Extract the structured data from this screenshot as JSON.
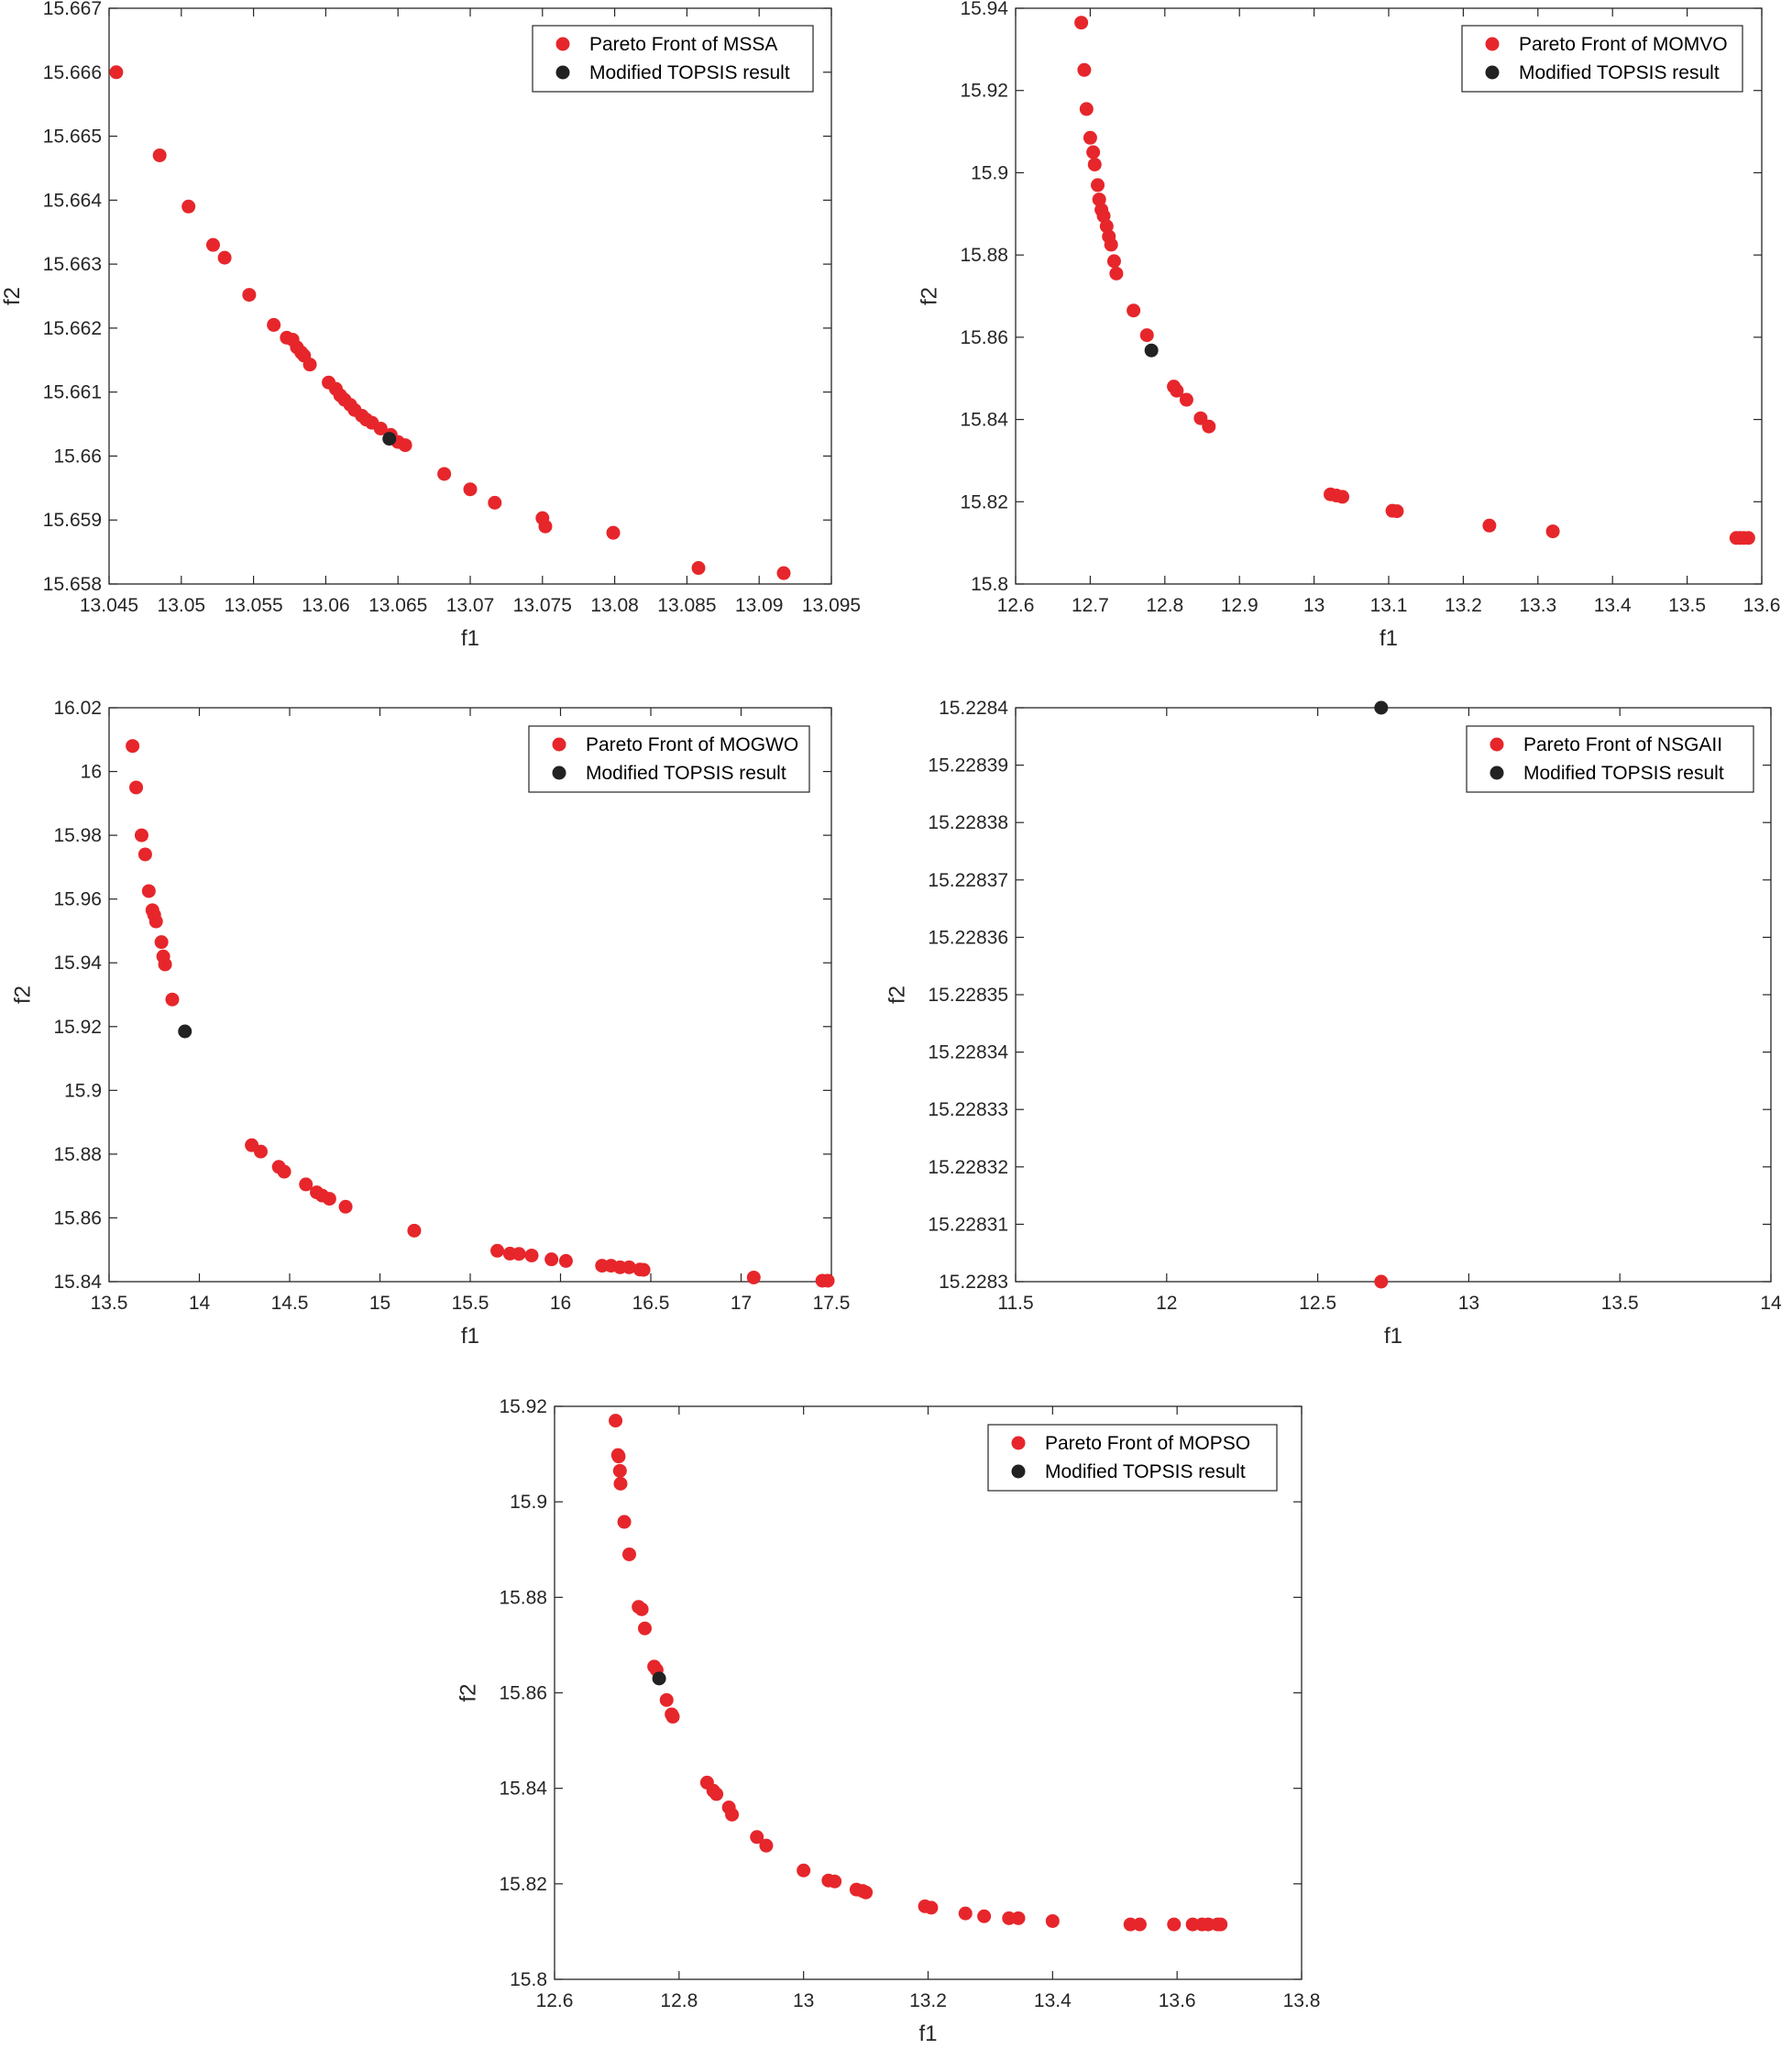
{
  "colors": {
    "pareto": "#e6262b",
    "topsis": "#222222",
    "axis": "#262626"
  },
  "chart_data": [
    {
      "type": "scatter",
      "xlabel": "f1",
      "ylabel": "f2",
      "xlim": [
        13.045,
        13.095
      ],
      "ylim": [
        15.658,
        15.667
      ],
      "xticks": [
        "13.045",
        "13.05",
        "13.055",
        "13.06",
        "13.065",
        "13.07",
        "13.075",
        "13.08",
        "13.085",
        "13.09",
        "13.095"
      ],
      "yticks": [
        "15.658",
        "15.659",
        "15.66",
        "15.661",
        "15.662",
        "15.663",
        "15.664",
        "15.665",
        "15.666",
        "15.667"
      ],
      "legend": "top-right",
      "series": [
        {
          "name": "Pareto Front of MSSA",
          "color": "pareto",
          "x": [
            13.0455,
            13.0485,
            13.0505,
            13.0522,
            13.053,
            13.0547,
            13.0564,
            13.0573,
            13.0577,
            13.058,
            13.0583,
            13.0585,
            13.0589,
            13.0602,
            13.0607,
            13.061,
            13.0613,
            13.0617,
            13.062,
            13.0625,
            13.0628,
            13.0632,
            13.0638,
            13.0645,
            13.065,
            13.0655,
            13.0682,
            13.07,
            13.0717,
            13.075,
            13.0752,
            13.0799,
            13.0858,
            13.0917
          ],
          "y": [
            15.666,
            15.6647,
            15.6639,
            15.6633,
            15.6631,
            15.66252,
            15.66205,
            15.66185,
            15.66182,
            15.6617,
            15.66162,
            15.66157,
            15.66143,
            15.66115,
            15.66105,
            15.66095,
            15.66088,
            15.6608,
            15.66072,
            15.66063,
            15.66057,
            15.66052,
            15.66043,
            15.66033,
            15.66022,
            15.66017,
            15.65972,
            15.65948,
            15.65927,
            15.65903,
            15.6589,
            15.6588,
            15.65825,
            15.65817
          ]
        },
        {
          "name": "Modified TOPSIS result",
          "color": "topsis",
          "x": [
            13.0644
          ],
          "y": [
            15.66027
          ]
        }
      ]
    },
    {
      "type": "scatter",
      "xlabel": "f1",
      "ylabel": "f2",
      "xlim": [
        12.6,
        13.6
      ],
      "ylim": [
        15.8,
        15.94
      ],
      "xticks": [
        "12.6",
        "12.7",
        "12.8",
        "12.9",
        "13",
        "13.1",
        "13.2",
        "13.3",
        "13.4",
        "13.5",
        "13.6"
      ],
      "yticks": [
        "15.8",
        "15.82",
        "15.84",
        "15.86",
        "15.88",
        "15.9",
        "15.92",
        "15.94"
      ],
      "legend": "top-right",
      "series": [
        {
          "name": "Pareto Front of MOMVO",
          "color": "pareto",
          "x": [
            12.688,
            12.692,
            12.695,
            12.7,
            12.704,
            12.706,
            12.71,
            12.712,
            12.715,
            12.718,
            12.722,
            12.725,
            12.728,
            12.732,
            12.735,
            12.758,
            12.776,
            12.812,
            12.816,
            12.829,
            12.848,
            12.859,
            13.022,
            13.03,
            13.038,
            13.105,
            13.111,
            13.235,
            13.32,
            13.566,
            13.571,
            13.576,
            13.582
          ],
          "y": [
            15.9365,
            15.925,
            15.9155,
            15.9085,
            15.905,
            15.902,
            15.897,
            15.8935,
            15.891,
            15.8895,
            15.887,
            15.8845,
            15.8825,
            15.8785,
            15.8755,
            15.8665,
            15.8605,
            15.848,
            15.847,
            15.8448,
            15.8403,
            15.8383,
            15.8218,
            15.8215,
            15.8212,
            15.8178,
            15.8177,
            15.8142,
            15.8128,
            15.8112,
            15.8112,
            15.8112,
            15.8112
          ]
        },
        {
          "name": "Modified TOPSIS result",
          "color": "topsis",
          "x": [
            12.782
          ],
          "y": [
            15.8568
          ]
        }
      ]
    },
    {
      "type": "scatter",
      "xlabel": "f1",
      "ylabel": "f2",
      "xlim": [
        13.5,
        17.5
      ],
      "ylim": [
        15.84,
        16.02
      ],
      "xticks": [
        "13.5",
        "14",
        "14.5",
        "15",
        "15.5",
        "16",
        "16.5",
        "17",
        "17.5"
      ],
      "yticks": [
        "15.84",
        "15.86",
        "15.88",
        "15.9",
        "15.92",
        "15.94",
        "15.96",
        "15.98",
        "16",
        "16.02"
      ],
      "legend": "top-right",
      "series": [
        {
          "name": "Pareto Front of MOGWO",
          "color": "pareto",
          "x": [
            13.63,
            13.65,
            13.68,
            13.7,
            13.72,
            13.74,
            13.75,
            13.76,
            13.79,
            13.8,
            13.81,
            13.85,
            14.29,
            14.34,
            14.44,
            14.47,
            14.59,
            14.65,
            14.68,
            14.72,
            14.81,
            15.19,
            15.65,
            15.72,
            15.77,
            15.84,
            15.95,
            16.03,
            16.23,
            16.28,
            16.33,
            16.38,
            16.44,
            16.46,
            17.07,
            17.45,
            17.48
          ],
          "y": [
            16.008,
            15.995,
            15.98,
            15.974,
            15.9625,
            15.9565,
            15.955,
            15.953,
            15.9465,
            15.942,
            15.9395,
            15.9285,
            15.8828,
            15.8808,
            15.876,
            15.8745,
            15.8705,
            15.868,
            15.867,
            15.866,
            15.8635,
            15.856,
            15.8497,
            15.8488,
            15.8487,
            15.8482,
            15.847,
            15.8465,
            15.845,
            15.845,
            15.8445,
            15.8445,
            15.8438,
            15.8437,
            15.8413,
            15.8403,
            15.8403
          ]
        },
        {
          "name": "Modified TOPSIS result",
          "color": "topsis",
          "x": [
            13.92
          ],
          "y": [
            15.9185
          ]
        }
      ]
    },
    {
      "type": "scatter",
      "xlabel": "f1",
      "ylabel": "f2",
      "xlim": [
        11.5,
        14
      ],
      "ylim": [
        15.2283,
        15.2284
      ],
      "xticks": [
        "11.5",
        "12",
        "12.5",
        "13",
        "13.5",
        "14"
      ],
      "yticks": [
        "15.2283",
        "15.22831",
        "15.22832",
        "15.22833",
        "15.22834",
        "15.22835",
        "15.22836",
        "15.22837",
        "15.22838",
        "15.22839",
        "15.2284"
      ],
      "legend": "top-right",
      "series": [
        {
          "name": "Pareto Front of NSGAII",
          "color": "pareto",
          "x": [
            12.71
          ],
          "y": [
            15.2283
          ]
        },
        {
          "name": "Modified TOPSIS result",
          "color": "topsis",
          "x": [
            12.71
          ],
          "y": [
            15.2284
          ]
        }
      ]
    },
    {
      "type": "scatter",
      "xlabel": "f1",
      "ylabel": "f2",
      "xlim": [
        12.6,
        13.8
      ],
      "ylim": [
        15.8,
        15.92
      ],
      "xticks": [
        "12.6",
        "12.8",
        "13",
        "13.2",
        "13.4",
        "13.6",
        "13.8"
      ],
      "yticks": [
        "15.8",
        "15.82",
        "15.84",
        "15.86",
        "15.88",
        "15.9",
        "15.92"
      ],
      "legend": "top-right",
      "series": [
        {
          "name": "Pareto Front of MOPSO",
          "color": "pareto",
          "x": [
            12.698,
            12.702,
            12.703,
            12.705,
            12.706,
            12.712,
            12.72,
            12.735,
            12.74,
            12.745,
            12.76,
            12.764,
            12.78,
            12.788,
            12.79,
            12.845,
            12.855,
            12.86,
            12.88,
            12.885,
            12.925,
            12.94,
            13.0,
            13.04,
            13.05,
            13.085,
            13.095,
            13.1,
            13.195,
            13.205,
            13.26,
            13.29,
            13.33,
            13.345,
            13.4,
            13.525,
            13.54,
            13.595,
            13.625,
            13.64,
            13.65,
            13.665,
            13.67
          ],
          "y": [
            15.917,
            15.9098,
            15.9095,
            15.9065,
            15.9038,
            15.8958,
            15.889,
            15.878,
            15.8775,
            15.8735,
            15.8655,
            15.8648,
            15.8585,
            15.8555,
            15.855,
            15.8412,
            15.8395,
            15.8388,
            15.836,
            15.8345,
            15.8298,
            15.828,
            15.8228,
            15.8207,
            15.8205,
            15.8188,
            15.8185,
            15.8182,
            15.8153,
            15.815,
            15.8138,
            15.8132,
            15.8128,
            15.8128,
            15.8122,
            15.8115,
            15.8115,
            15.8115,
            15.8115,
            15.8115,
            15.8115,
            15.8115,
            15.8115
          ]
        },
        {
          "name": "Modified TOPSIS result",
          "color": "topsis",
          "x": [
            12.768
          ],
          "y": [
            15.863
          ]
        }
      ]
    }
  ]
}
